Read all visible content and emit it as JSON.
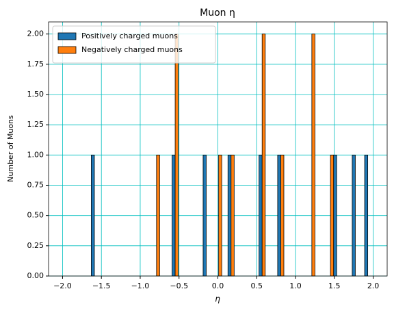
{
  "chart_data": {
    "type": "histogram",
    "title": "Muon η",
    "xlabel": "η",
    "ylabel": "Number of Muons",
    "bins": [
      -1.63,
      -1.55,
      -1.47,
      -1.39,
      -1.31,
      -1.23,
      -1.15,
      -1.07,
      -0.99,
      -0.91,
      -0.83,
      -0.75,
      -0.67,
      -0.59,
      -0.51,
      -0.43,
      -0.35,
      -0.27,
      -0.19,
      -0.11,
      -0.03,
      0.05,
      0.13,
      0.21,
      0.29,
      0.37,
      0.45,
      0.53,
      0.61,
      0.69,
      0.77,
      0.85,
      0.93,
      1.01,
      1.09,
      1.17,
      1.25,
      1.33,
      1.41,
      1.49,
      1.57,
      1.65,
      1.73,
      1.81,
      1.89,
      1.97
    ],
    "series": [
      {
        "name": "Positively charged muons",
        "color": "#1f77b4",
        "values": [
          1,
          0,
          0,
          0,
          0,
          0,
          0,
          0,
          0,
          0,
          0,
          0,
          0,
          1,
          0,
          0,
          0,
          0,
          1,
          0,
          0,
          0,
          1,
          0,
          0,
          0,
          0,
          1,
          0,
          0,
          1,
          0,
          0,
          0,
          0,
          0,
          0,
          0,
          0,
          1,
          0,
          0,
          1,
          0,
          1
        ]
      },
      {
        "name": "Negatively charged muons",
        "color": "#ff7f0e",
        "values": [
          0,
          0,
          0,
          0,
          0,
          0,
          0,
          0,
          0,
          0,
          1,
          0,
          0,
          2,
          0,
          0,
          0,
          0,
          0,
          0,
          1,
          0,
          1,
          0,
          0,
          0,
          0,
          2,
          0,
          0,
          1,
          0,
          0,
          0,
          0,
          2,
          0,
          0,
          1,
          0,
          0,
          0,
          0,
          0,
          0
        ]
      }
    ],
    "xlim": [
      -2.18,
      2.18
    ],
    "ylim": [
      0,
      2.1
    ],
    "xticks": [
      {
        "value": -2,
        "label": "−2.0"
      },
      {
        "value": -1.5,
        "label": "−1.5"
      },
      {
        "value": -1,
        "label": "−1.0"
      },
      {
        "value": -0.5,
        "label": "−0.5"
      },
      {
        "value": 0,
        "label": "0.0"
      },
      {
        "value": 0.5,
        "label": "0.5"
      },
      {
        "value": 1,
        "label": "1.0"
      },
      {
        "value": 1.5,
        "label": "1.5"
      },
      {
        "value": 2,
        "label": "2.0"
      }
    ],
    "yticks": [
      {
        "value": 0,
        "label": "0.00"
      },
      {
        "value": 0.25,
        "label": "0.25"
      },
      {
        "value": 0.5,
        "label": "0.50"
      },
      {
        "value": 0.75,
        "label": "0.75"
      },
      {
        "value": 1,
        "label": "1.00"
      },
      {
        "value": 1.25,
        "label": "1.25"
      },
      {
        "value": 1.5,
        "label": "1.50"
      },
      {
        "value": 1.75,
        "label": "1.75"
      },
      {
        "value": 2,
        "label": "2.00"
      }
    ],
    "grid": true,
    "grid_color": "#00bfbf",
    "legend": "upper left"
  }
}
